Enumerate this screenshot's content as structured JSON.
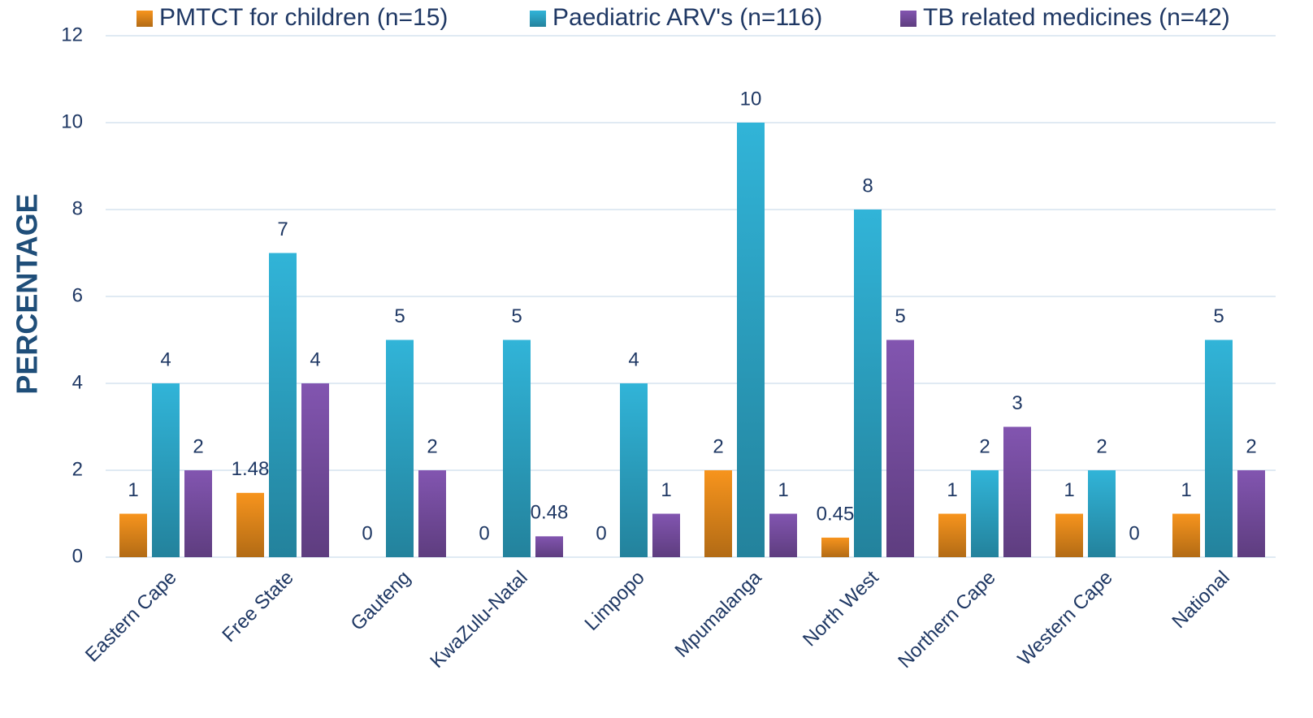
{
  "chart_data": {
    "type": "bar",
    "y_label": "PERCENTAGE",
    "categories": [
      "Eastern Cape",
      "Free State",
      "Gauteng",
      "KwaZulu-Natal",
      "Limpopo",
      "Mpumalanga",
      "North West",
      "Northern Cape",
      "Western Cape",
      "National"
    ],
    "series": [
      {
        "name": "PMTCT for children (n=15)",
        "color": "#f7941d",
        "values": [
          1,
          1.48,
          0,
          0,
          0,
          2,
          0.45,
          1,
          1,
          1
        ]
      },
      {
        "name": "Paediatric ARV's (n=116)",
        "color": "#31b4d8",
        "values": [
          4,
          7,
          5,
          5,
          4,
          10,
          8,
          2,
          2,
          5
        ]
      },
      {
        "name": "TB related medicines (n=42)",
        "color": "#8255b0",
        "values": [
          2,
          4,
          2,
          0.48,
          1,
          1,
          5,
          3,
          0,
          2
        ]
      }
    ],
    "ylim": [
      0,
      12
    ],
    "yticks": [
      0,
      2,
      4,
      6,
      8,
      10,
      12
    ],
    "grid": true,
    "legend": "top"
  }
}
